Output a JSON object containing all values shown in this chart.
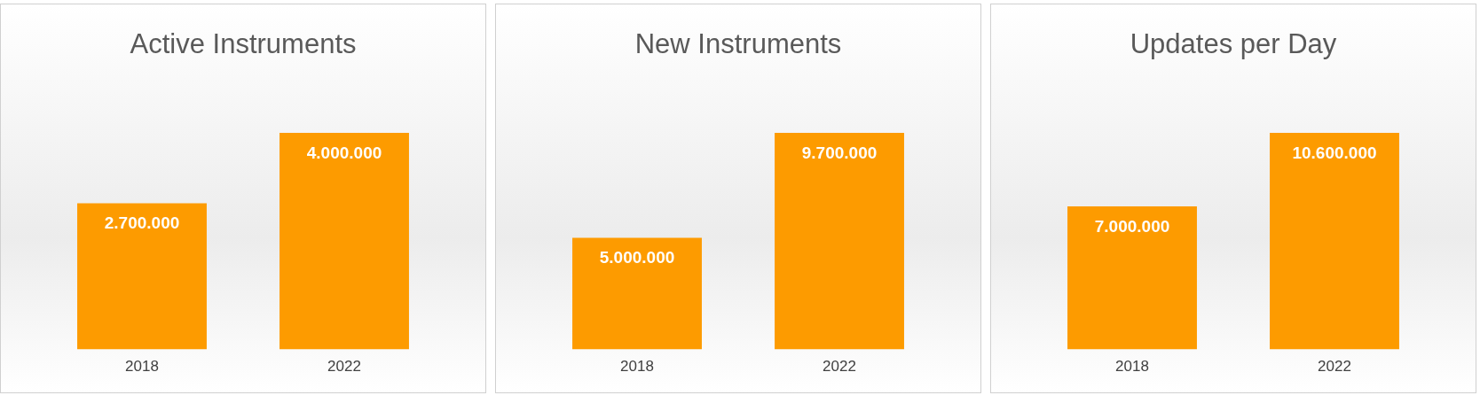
{
  "chart_data": [
    {
      "type": "bar",
      "title": "Active Instruments",
      "categories": [
        "2018",
        "2022"
      ],
      "values": [
        2700000,
        4000000
      ],
      "value_labels": [
        "2.700.000",
        "4.000.000"
      ],
      "color": "#fd9b00",
      "grid": false,
      "legend": false,
      "tick_labels": "x"
    },
    {
      "type": "bar",
      "title": "New Instruments",
      "categories": [
        "2018",
        "2022"
      ],
      "values": [
        5000000,
        9700000
      ],
      "value_labels": [
        "5.000.000",
        "9.700.000"
      ],
      "color": "#fd9b00",
      "grid": false,
      "legend": false,
      "tick_labels": "x"
    },
    {
      "type": "bar",
      "title": "Updates per Day",
      "categories": [
        "2018",
        "2022"
      ],
      "values": [
        7000000,
        10600000
      ],
      "value_labels": [
        "7.000.000",
        "10.600.000"
      ],
      "color": "#fd9b00",
      "grid": false,
      "legend": false,
      "tick_labels": "x"
    }
  ]
}
